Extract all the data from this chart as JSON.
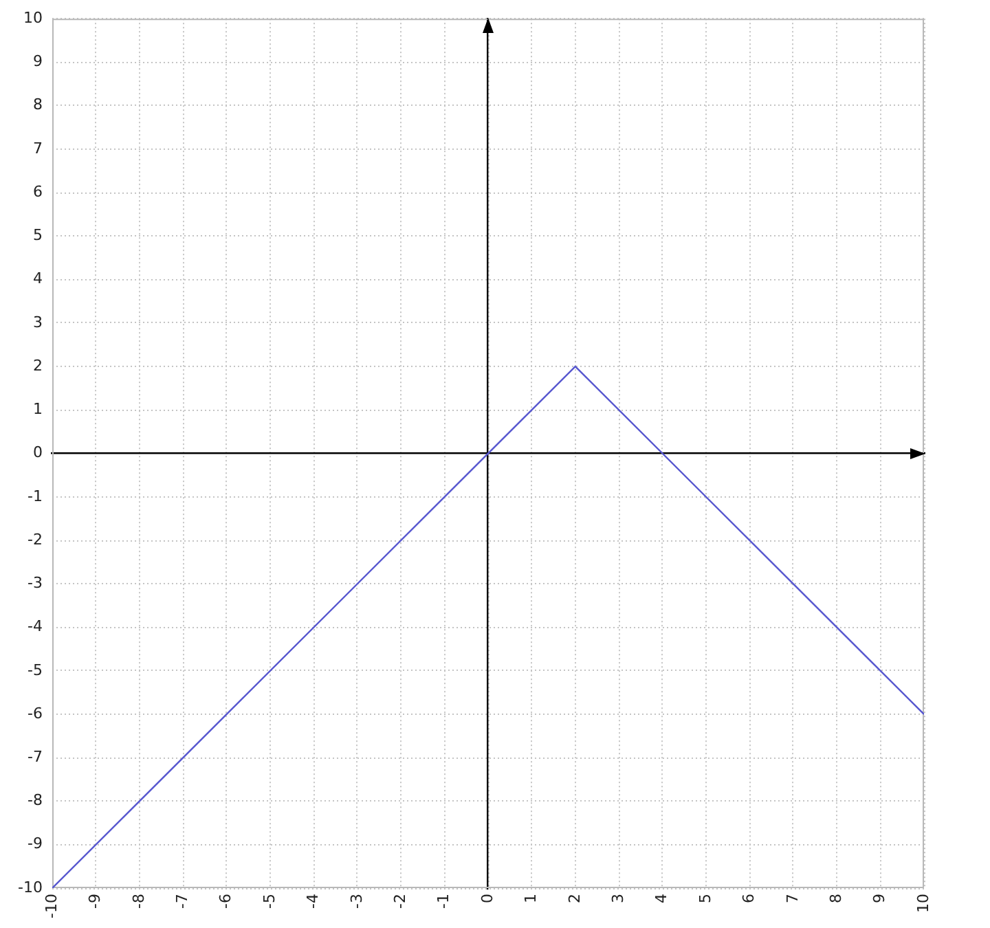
{
  "chart_data": {
    "type": "line",
    "x": [
      -10,
      2,
      10
    ],
    "values": [
      -10,
      2,
      -6
    ],
    "color": "#5757cf",
    "xlim": [
      -10,
      10
    ],
    "ylim": [
      -10,
      10
    ],
    "xticks": [
      -10,
      -9,
      -8,
      -7,
      -6,
      -5,
      -4,
      -3,
      -2,
      -1,
      0,
      1,
      2,
      3,
      4,
      5,
      6,
      7,
      8,
      9,
      10
    ],
    "yticks": [
      -10,
      -9,
      -8,
      -7,
      -6,
      -5,
      -4,
      -3,
      -2,
      -1,
      0,
      1,
      2,
      3,
      4,
      5,
      6,
      7,
      8,
      9,
      10
    ],
    "grid": true
  }
}
